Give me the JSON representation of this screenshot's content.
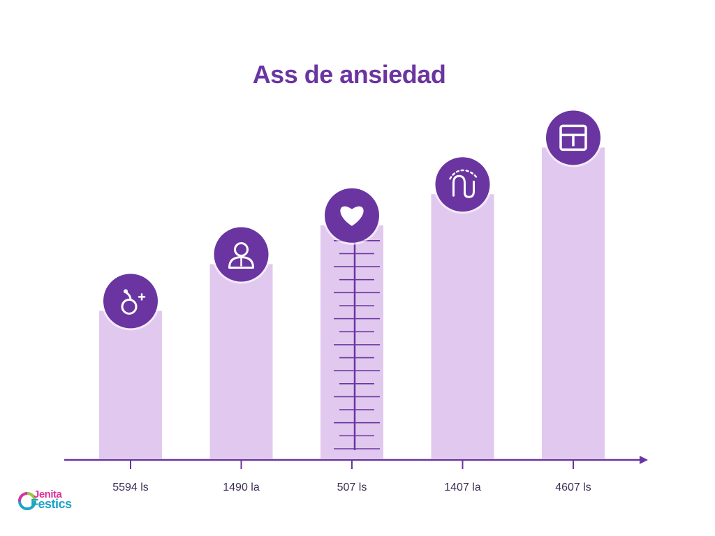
{
  "colors": {
    "title": "#6a35a1",
    "bar_fill": "#e1c8ee",
    "axis": "#6a35a1",
    "icon_circle": "#6a35a1",
    "icon_glyph": "#ffffff",
    "scale_lines": "#6a35a1",
    "label": "#3f2f55"
  },
  "chart_data": {
    "type": "bar",
    "title": "Ass de ansiedad",
    "xlabel": "",
    "ylabel": "",
    "categories": [
      "5594 ls",
      "1490 la",
      "507 ls",
      "1407 la",
      "4607 ls"
    ],
    "values": [
      38,
      50,
      60,
      68,
      80
    ],
    "ylim": [
      0,
      100
    ],
    "icons": [
      "bulb-plus-icon",
      "person-icon",
      "heart-icon",
      "brain-icon",
      "box-icon"
    ],
    "grid": false,
    "legend": "none"
  },
  "logo": {
    "line1": "Jenita",
    "line2": "Festics"
  }
}
